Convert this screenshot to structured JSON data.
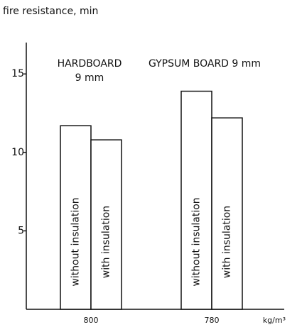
{
  "chart_data": {
    "type": "bar",
    "y_label": "fire resistance, min",
    "x_unit": "kg/m³",
    "categories": [
      "800",
      "780"
    ],
    "group_labels": [
      [
        "HARDBOARD",
        "9 mm"
      ],
      [
        "GYPSUM BOARD 9 mm"
      ]
    ],
    "series": [
      {
        "name": "without insulation",
        "color": "#ffffff",
        "values": [
          11.7,
          13.9
        ]
      },
      {
        "name": "with insulation",
        "color": "#ffffff",
        "values": [
          10.8,
          12.2
        ]
      }
    ],
    "ylim": [
      0,
      17
    ],
    "yticks": [
      5,
      10,
      15
    ],
    "grid": false
  }
}
